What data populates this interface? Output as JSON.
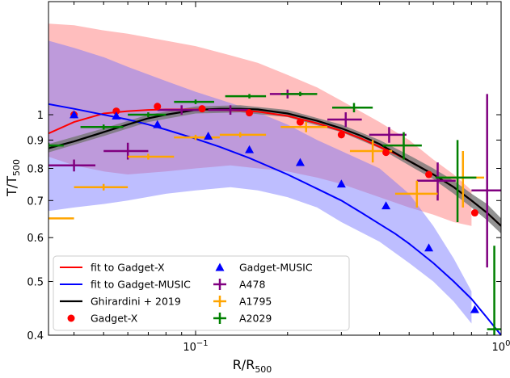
{
  "chart_data": {
    "type": "scatter",
    "xlabel": "R/R",
    "xlabel_sub": "500",
    "ylabel": "T/T",
    "ylabel_sub": "500",
    "xscale": "log",
    "yscale": "log",
    "xlim": [
      0.033,
      1.0
    ],
    "ylim": [
      0.4,
      1.6
    ],
    "xticks": [
      {
        "value": 0.1,
        "label": "10",
        "exp": "−1"
      },
      {
        "value": 1.0,
        "label": "10",
        "exp": "0"
      }
    ],
    "yticks": [
      {
        "value": 0.4,
        "label": "0.4"
      },
      {
        "value": 0.5,
        "label": "0.5"
      },
      {
        "value": 0.6,
        "label": "0.6"
      },
      {
        "value": 0.7,
        "label": "0.7"
      },
      {
        "value": 0.8,
        "label": "0.8"
      },
      {
        "value": 0.9,
        "label": "0.9"
      },
      {
        "value": 1.0,
        "label": "1"
      }
    ],
    "grid": false,
    "legend_position": "bottom-left",
    "colors": {
      "gadget_x": "#ff0000",
      "gadget_music": "#0000ff",
      "ghirardini": "#000000",
      "band_x": "#ffb3b3",
      "band_music": "#b4b4ff",
      "band_overlap": "#b07ac8",
      "band_ghirardini": "#777777",
      "a478": "#800080",
      "a1795": "#ffa500",
      "a2029": "#008000"
    },
    "series": [
      {
        "name": "fit to Gadget-X",
        "kind": "line",
        "x": [
          0.033,
          0.04,
          0.05,
          0.06,
          0.07,
          0.08,
          0.1,
          0.12,
          0.14,
          0.16,
          0.2,
          0.25,
          0.3,
          0.35,
          0.4,
          0.45,
          0.5,
          0.6,
          0.7,
          0.8,
          0.9,
          1.0
        ],
        "y": [
          0.925,
          0.97,
          1.005,
          1.015,
          1.02,
          1.022,
          1.022,
          1.02,
          1.017,
          1.013,
          0.995,
          0.965,
          0.935,
          0.905,
          0.875,
          0.85,
          0.825,
          0.78,
          0.74,
          0.7,
          0.665,
          0.63
        ]
      },
      {
        "name": "fit to Gadget-MUSIC",
        "kind": "line",
        "x": [
          0.033,
          0.04,
          0.05,
          0.06,
          0.07,
          0.08,
          0.1,
          0.12,
          0.15,
          0.2,
          0.25,
          0.3,
          0.35,
          0.4,
          0.45,
          0.5,
          0.6,
          0.7,
          0.8,
          0.9,
          1.0
        ],
        "y": [
          1.045,
          1.025,
          1.0,
          0.98,
          0.96,
          0.94,
          0.905,
          0.875,
          0.835,
          0.78,
          0.735,
          0.7,
          0.665,
          0.635,
          0.61,
          0.585,
          0.54,
          0.5,
          0.465,
          0.43,
          0.4
        ]
      },
      {
        "name": "Ghirardini + 2019",
        "kind": "line",
        "x": [
          0.033,
          0.04,
          0.05,
          0.06,
          0.07,
          0.08,
          0.1,
          0.12,
          0.14,
          0.16,
          0.2,
          0.25,
          0.3,
          0.35,
          0.4,
          0.5,
          0.6,
          0.7,
          0.8,
          0.9,
          1.0
        ],
        "y": [
          0.87,
          0.895,
          0.93,
          0.96,
          0.985,
          1.0,
          1.02,
          1.025,
          1.025,
          1.022,
          1.005,
          0.975,
          0.945,
          0.915,
          0.885,
          0.825,
          0.78,
          0.74,
          0.7,
          0.665,
          0.63
        ]
      },
      {
        "name": "Gadget-X",
        "kind": "points",
        "marker": "circle",
        "x": [
          0.04,
          0.055,
          0.075,
          0.105,
          0.15,
          0.22,
          0.3,
          0.42,
          0.58,
          0.82
        ],
        "y": [
          1.0,
          1.015,
          1.035,
          1.025,
          1.008,
          0.97,
          0.92,
          0.855,
          0.78,
          0.665
        ]
      },
      {
        "name": "Gadget-MUSIC",
        "kind": "points",
        "marker": "triangle",
        "x": [
          0.04,
          0.055,
          0.075,
          0.11,
          0.15,
          0.22,
          0.3,
          0.42,
          0.58,
          0.82
        ],
        "y": [
          1.0,
          0.995,
          0.96,
          0.915,
          0.865,
          0.82,
          0.75,
          0.685,
          0.575,
          0.445
        ]
      },
      {
        "name": "A478",
        "kind": "errorbars",
        "x": [
          0.04,
          0.06,
          0.09,
          0.13,
          0.2,
          0.31,
          0.43,
          0.62,
          0.9
        ],
        "xlo": [
          0.033,
          0.05,
          0.075,
          0.11,
          0.175,
          0.27,
          0.37,
          0.53,
          0.8
        ],
        "xhi": [
          0.047,
          0.07,
          0.105,
          0.15,
          0.225,
          0.35,
          0.49,
          0.71,
          1.0
        ],
        "y": [
          0.81,
          0.86,
          1.02,
          1.02,
          1.09,
          0.98,
          0.92,
          0.76,
          0.73
        ],
        "ylo": [
          0.79,
          0.83,
          1.0,
          1.0,
          1.07,
          0.95,
          0.89,
          0.7,
          0.53
        ],
        "yhi": [
          0.83,
          0.89,
          1.04,
          1.04,
          1.11,
          1.01,
          0.95,
          0.82,
          1.09
        ]
      },
      {
        "name": "A1795",
        "kind": "errorbars",
        "x": [
          0.033,
          0.05,
          0.07,
          0.1,
          0.14,
          0.23,
          0.38,
          0.53,
          0.75
        ],
        "xlo": [
          0.033,
          0.04,
          0.06,
          0.085,
          0.12,
          0.19,
          0.32,
          0.45,
          0.64
        ],
        "xhi": [
          0.04,
          0.06,
          0.085,
          0.12,
          0.17,
          0.27,
          0.44,
          0.62,
          0.88
        ],
        "y": [
          0.65,
          0.74,
          0.84,
          0.91,
          0.92,
          0.95,
          0.86,
          0.72,
          0.77
        ],
        "ylo": [
          0.65,
          0.73,
          0.83,
          0.9,
          0.91,
          0.93,
          0.82,
          0.68,
          0.68
        ],
        "yhi": [
          0.65,
          0.75,
          0.85,
          0.92,
          0.93,
          0.97,
          0.9,
          0.76,
          0.86
        ]
      },
      {
        "name": "A2029",
        "kind": "errorbars",
        "x": [
          0.033,
          0.05,
          0.07,
          0.1,
          0.15,
          0.22,
          0.33,
          0.48,
          0.72,
          0.95
        ],
        "xlo": [
          0.033,
          0.042,
          0.06,
          0.085,
          0.125,
          0.19,
          0.28,
          0.41,
          0.61,
          0.9
        ],
        "xhi": [
          0.037,
          0.058,
          0.08,
          0.115,
          0.17,
          0.25,
          0.38,
          0.55,
          0.83,
          1.0
        ],
        "y": [
          0.88,
          0.95,
          1.0,
          1.055,
          1.08,
          1.09,
          1.03,
          0.88,
          0.77,
          0.41
        ],
        "ylo": [
          0.87,
          0.94,
          0.99,
          1.045,
          1.07,
          1.08,
          1.01,
          0.83,
          0.64,
          0.4
        ],
        "yhi": [
          0.89,
          0.96,
          1.01,
          1.065,
          1.09,
          1.1,
          1.05,
          0.93,
          0.9,
          0.58
        ]
      }
    ],
    "bands": [
      {
        "name": "Gadget-X scatter",
        "x": [
          0.033,
          0.04,
          0.05,
          0.06,
          0.08,
          0.1,
          0.13,
          0.16,
          0.2,
          0.25,
          0.3,
          0.4,
          0.5,
          0.6,
          0.7,
          0.8
        ],
        "hi": [
          1.46,
          1.45,
          1.42,
          1.4,
          1.36,
          1.33,
          1.28,
          1.24,
          1.18,
          1.12,
          1.06,
          0.97,
          0.9,
          0.83,
          0.78,
          0.73
        ],
        "lo": [
          0.84,
          0.81,
          0.79,
          0.78,
          0.79,
          0.8,
          0.81,
          0.8,
          0.79,
          0.77,
          0.75,
          0.71,
          0.68,
          0.66,
          0.64,
          0.63
        ]
      },
      {
        "name": "Gadget-MUSIC scatter",
        "x": [
          0.033,
          0.04,
          0.05,
          0.06,
          0.08,
          0.1,
          0.13,
          0.16,
          0.2,
          0.25,
          0.3,
          0.4,
          0.5,
          0.6,
          0.7,
          0.8
        ],
        "hi": [
          1.36,
          1.32,
          1.27,
          1.22,
          1.15,
          1.1,
          1.05,
          1.01,
          0.96,
          0.9,
          0.86,
          0.8,
          0.72,
          0.63,
          0.55,
          0.48
        ],
        "lo": [
          0.67,
          0.68,
          0.69,
          0.7,
          0.72,
          0.73,
          0.74,
          0.73,
          0.71,
          0.68,
          0.64,
          0.59,
          0.54,
          0.5,
          0.46,
          0.42
        ]
      },
      {
        "name": "Ghirardini + 2019 uncertainty",
        "x": [
          0.033,
          0.05,
          0.07,
          0.1,
          0.14,
          0.2,
          0.3,
          0.4,
          0.5,
          0.6,
          0.7,
          0.8,
          0.9,
          1.0
        ],
        "hi": [
          0.885,
          0.945,
          1.0,
          1.035,
          1.04,
          1.02,
          0.96,
          0.9,
          0.845,
          0.8,
          0.76,
          0.72,
          0.69,
          0.65
        ],
        "lo": [
          0.855,
          0.915,
          0.97,
          1.005,
          1.01,
          0.99,
          0.93,
          0.87,
          0.81,
          0.765,
          0.72,
          0.68,
          0.645,
          0.61
        ]
      }
    ],
    "legend": {
      "col1": [
        "fit to Gadget-X",
        "fit to Gadget-MUSIC",
        "Ghirardini + 2019",
        "Gadget-X"
      ],
      "col2": [
        "Gadget-MUSIC",
        "A478",
        "A1795",
        "A2029"
      ]
    }
  }
}
